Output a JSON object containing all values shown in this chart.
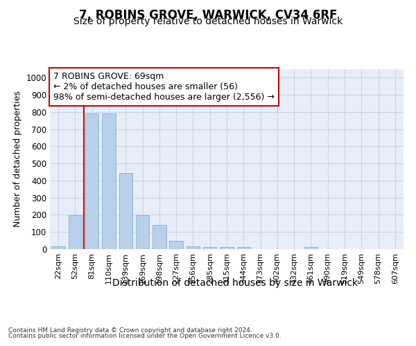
{
  "title": "7, ROBINS GROVE, WARWICK, CV34 6RF",
  "subtitle": "Size of property relative to detached houses in Warwick",
  "xlabel": "Distribution of detached houses by size in Warwick",
  "ylabel": "Number of detached properties",
  "categories": [
    "22sqm",
    "52sqm",
    "81sqm",
    "110sqm",
    "139sqm",
    "169sqm",
    "198sqm",
    "227sqm",
    "256sqm",
    "285sqm",
    "315sqm",
    "344sqm",
    "373sqm",
    "402sqm",
    "432sqm",
    "461sqm",
    "490sqm",
    "519sqm",
    "549sqm",
    "578sqm",
    "607sqm"
  ],
  "values": [
    18,
    198,
    790,
    790,
    443,
    198,
    142,
    50,
    18,
    12,
    12,
    12,
    0,
    0,
    0,
    12,
    0,
    0,
    0,
    0,
    0
  ],
  "bar_color": "#b8d0ea",
  "bar_edgecolor": "#6aaad4",
  "redline_x": 1.5,
  "annotation_title": "7 ROBINS GROVE: 69sqm",
  "annotation_line1": "← 2% of detached houses are smaller (56)",
  "annotation_line2": "98% of semi-detached houses are larger (2,556) →",
  "annotation_box_facecolor": "#ffffff",
  "annotation_border_color": "#cc0000",
  "redline_color": "#cc0000",
  "grid_color": "#c8d4e8",
  "background_color": "#e8eef8",
  "ylim": [
    0,
    1050
  ],
  "yticks": [
    0,
    100,
    200,
    300,
    400,
    500,
    600,
    700,
    800,
    900,
    1000
  ],
  "footer1": "Contains HM Land Registry data © Crown copyright and database right 2024.",
  "footer2": "Contains public sector information licensed under the Open Government Licence v3.0.",
  "title_fontsize": 12,
  "subtitle_fontsize": 10,
  "tick_fontsize": 8,
  "ylabel_fontsize": 9,
  "xlabel_fontsize": 10,
  "annotation_fontsize": 9,
  "footer_fontsize": 6.5
}
